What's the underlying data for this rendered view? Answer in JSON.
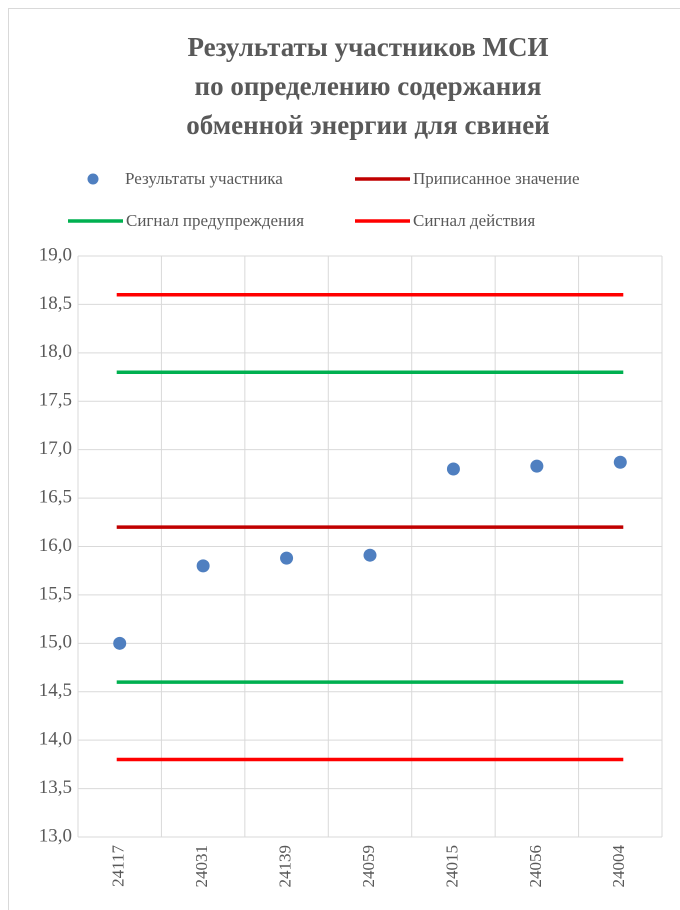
{
  "chart_data": {
    "type": "scatter",
    "title": [
      "Результаты участников МСИ",
      "по определению содержания",
      "обменной энергии для свиней"
    ],
    "categories": [
      "24117",
      "24031",
      "24139",
      "24059",
      "24015",
      "24056",
      "24004"
    ],
    "series": [
      {
        "name": "Результаты участника",
        "color": "#4f7fc0",
        "values": [
          15.0,
          15.8,
          15.88,
          15.91,
          16.8,
          16.83,
          16.87
        ]
      }
    ],
    "lines": [
      {
        "name": "Приписанное значение",
        "color": "#c00000",
        "levels": [
          16.2
        ]
      },
      {
        "name": "Сигнал предупреждения",
        "color": "#00b050",
        "levels": [
          14.6,
          17.8
        ]
      },
      {
        "name": "Сигнал действия",
        "color": "#ff0000",
        "levels": [
          13.8,
          18.6
        ]
      }
    ],
    "ylim": [
      13,
      19
    ],
    "yticks": [
      {
        "value": 13,
        "label": "13,0"
      },
      {
        "value": 13.5,
        "label": "13,5"
      },
      {
        "value": 14,
        "label": "14,0"
      },
      {
        "value": 14.5,
        "label": "14,5"
      },
      {
        "value": 15,
        "label": "15,0"
      },
      {
        "value": 15.5,
        "label": "15,5"
      },
      {
        "value": 16,
        "label": "16,0"
      },
      {
        "value": 16.5,
        "label": "16,5"
      },
      {
        "value": 17,
        "label": "17,0"
      },
      {
        "value": 17.5,
        "label": "17,5"
      },
      {
        "value": 18,
        "label": "18,0"
      },
      {
        "value": 18.5,
        "label": "18,5"
      },
      {
        "value": 19,
        "label": "19,0"
      }
    ],
    "grid": true
  }
}
